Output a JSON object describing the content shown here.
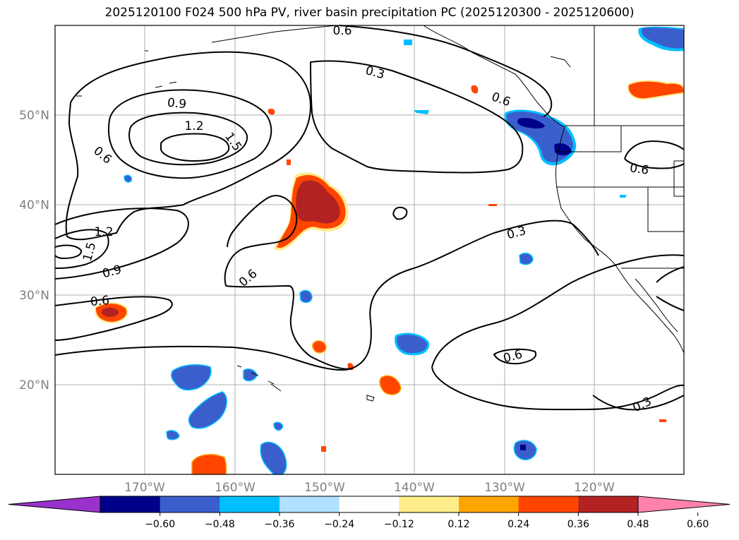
{
  "title": "2025120100 F024 500 hPa PV, river basin precipitation PC (2025120300 - 2025120600)",
  "map": {
    "lat_labels": [
      "50°N",
      "40°N",
      "30°N",
      "20°N"
    ],
    "lon_labels": [
      "170°W",
      "160°W",
      "150°W",
      "140°W",
      "130°W",
      "120°W"
    ],
    "contour_labels": [
      "0.6",
      "0.3",
      "0.6",
      "0.9",
      "1.2",
      "1.5",
      "0.6",
      "0.6",
      "1.2",
      "1.5",
      "0.9",
      "0.6",
      "0.6",
      "0.3",
      "0.6",
      "0.3"
    ],
    "grid": true,
    "extent": {
      "lon_min": -180,
      "lon_max": -110,
      "lat_min": 10,
      "lat_max": 60
    }
  },
  "colorbar": {
    "ticks": [
      "−0.60",
      "−0.48",
      "−0.36",
      "−0.24",
      "−0.12",
      "0.12",
      "0.24",
      "0.36",
      "0.48",
      "0.60"
    ],
    "colors": [
      "#9932cc",
      "#00008b",
      "#3a5fcd",
      "#00bfff",
      "#b0e2ff",
      "#ffffff",
      "#ffec8b",
      "#ffa500",
      "#ff4500",
      "#b22222",
      "#ff82ab"
    ]
  }
}
